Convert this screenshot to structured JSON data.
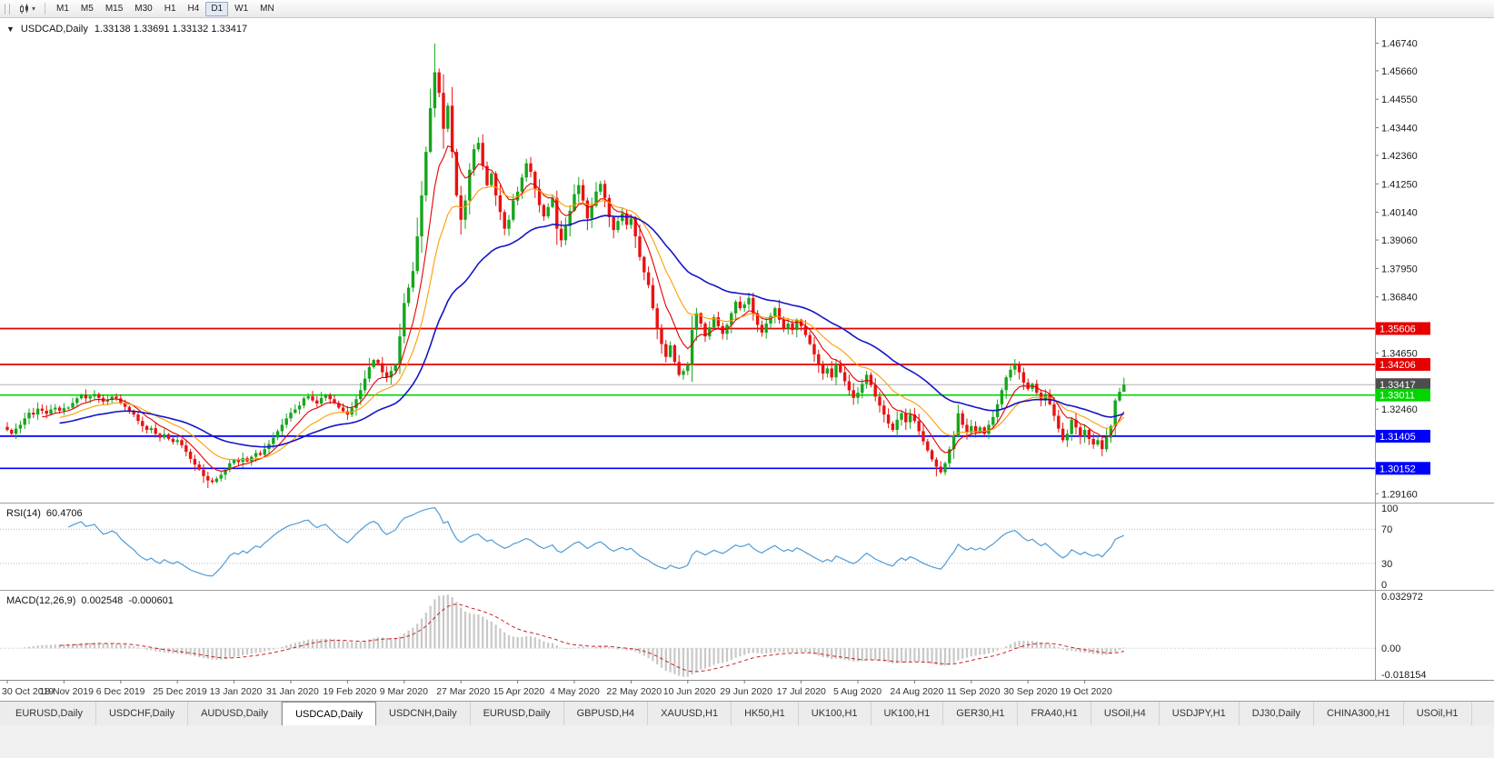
{
  "icons": {
    "collapse": "▼",
    "caret_down": "▾"
  },
  "toolbar": {
    "timeframes": [
      {
        "label": "M1",
        "active": false
      },
      {
        "label": "M5",
        "active": false
      },
      {
        "label": "M15",
        "active": false
      },
      {
        "label": "M30",
        "active": false
      },
      {
        "label": "H1",
        "active": false
      },
      {
        "label": "H4",
        "active": false
      },
      {
        "label": "D1",
        "active": true
      },
      {
        "label": "W1",
        "active": false
      },
      {
        "label": "MN",
        "active": false
      }
    ]
  },
  "chart": {
    "title": "USDCAD,Daily",
    "ohlc_text": "1.33138 1.33691 1.33132 1.33417"
  },
  "chart_data": {
    "type": "candlestick",
    "symbol": "USDCAD",
    "timeframe": "Daily",
    "last_ohlc": {
      "open": 1.33138,
      "high": 1.33691,
      "low": 1.33132,
      "close": 1.33417
    },
    "price_range": [
      1.2885,
      1.4775
    ],
    "y_ticks": [
      1.4674,
      1.4566,
      1.4455,
      1.4344,
      1.4236,
      1.4125,
      1.4014,
      1.3906,
      1.3795,
      1.3684,
      1.3465,
      1.3246,
      1.2916
    ],
    "levels": [
      {
        "price": 1.35606,
        "label": "1.35606",
        "color": "#e60000",
        "current": false
      },
      {
        "price": 1.34206,
        "label": "1.34206",
        "color": "#e60000",
        "current": false
      },
      {
        "price": 1.33417,
        "label": "1.33417",
        "color": "#4d4d4d",
        "current": true
      },
      {
        "price": 1.33011,
        "label": "1.33011",
        "color": "#00d500",
        "current": false
      },
      {
        "price": 1.31405,
        "label": "1.31405",
        "color": "#0000ff",
        "current": false
      },
      {
        "price": 1.30152,
        "label": "1.30152",
        "color": "#0000ff",
        "current": false
      }
    ],
    "x_labels": [
      "30 Oct 2019",
      "18 Nov 2019",
      "6 Dec 2019",
      "25 Dec 2019",
      "13 Jan 2020",
      "31 Jan 2020",
      "19 Feb 2020",
      "9 Mar 2020",
      "27 Mar 2020",
      "15 Apr 2020",
      "4 May 2020",
      "22 May 2020",
      "10 Jun 2020",
      "29 Jun 2020",
      "17 Jul 2020",
      "5 Aug 2020",
      "24 Aug 2020",
      "11 Sep 2020",
      "30 Sep 2020",
      "19 Oct 2020"
    ],
    "x_label_every": 13,
    "closes": [
      1.3165,
      1.315,
      1.317,
      1.3185,
      1.321,
      1.3232,
      1.3225,
      1.3248,
      1.324,
      1.3228,
      1.3245,
      1.3252,
      1.324,
      1.325,
      1.3252,
      1.327,
      1.3288,
      1.3302,
      1.3288,
      1.3296,
      1.3305,
      1.329,
      1.3275,
      1.3282,
      1.3295,
      1.3288,
      1.327,
      1.3255,
      1.324,
      1.3225,
      1.32,
      1.318,
      1.3165,
      1.3172,
      1.315,
      1.3135,
      1.3148,
      1.313,
      1.3118,
      1.3125,
      1.3105,
      1.308,
      1.3052,
      1.303,
      1.301,
      1.2985,
      1.2968,
      1.2962,
      1.2975,
      1.299,
      1.301,
      1.3035,
      1.3048,
      1.304,
      1.3055,
      1.3042,
      1.306,
      1.3075,
      1.3068,
      1.309,
      1.311,
      1.3135,
      1.316,
      1.3185,
      1.321,
      1.3232,
      1.3245,
      1.326,
      1.3288,
      1.3296,
      1.328,
      1.3268,
      1.329,
      1.3302,
      1.3285,
      1.327,
      1.3252,
      1.3238,
      1.3225,
      1.325,
      1.3285,
      1.332,
      1.3365,
      1.341,
      1.3438,
      1.3425,
      1.339,
      1.337,
      1.3395,
      1.342,
      1.353,
      1.366,
      1.372,
      1.3785,
      1.392,
      1.408,
      1.425,
      1.442,
      1.456,
      1.448,
      1.434,
      1.443,
      1.425,
      1.408,
      1.3985,
      1.406,
      1.418,
      1.426,
      1.4285,
      1.4195,
      1.412,
      1.4165,
      1.408,
      1.4015,
      1.395,
      1.3985,
      1.406,
      1.4095,
      1.415,
      1.4205,
      1.4172,
      1.4105,
      1.4042,
      1.3998,
      1.4035,
      1.407,
      1.395,
      1.3905,
      1.396,
      1.402,
      1.4085,
      1.412,
      1.406,
      1.399,
      1.404,
      1.4095,
      1.4125,
      1.407,
      1.3995,
      1.3945,
      1.398,
      1.401,
      1.3965,
      1.399,
      1.392,
      1.384,
      1.378,
      1.373,
      1.364,
      1.356,
      1.35,
      1.345,
      1.3495,
      1.343,
      1.338,
      1.3395,
      1.342,
      1.3555,
      1.362,
      1.358,
      1.353,
      1.3565,
      1.3605,
      1.357,
      1.354,
      1.3575,
      1.362,
      1.3665,
      1.364,
      1.3655,
      1.368,
      1.362,
      1.3575,
      1.3545,
      1.358,
      1.361,
      1.364,
      1.3595,
      1.356,
      1.358,
      1.3555,
      1.3595,
      1.357,
      1.3535,
      1.35,
      1.346,
      1.342,
      1.3385,
      1.3405,
      1.337,
      1.342,
      1.339,
      1.3355,
      1.332,
      1.329,
      1.331,
      1.3345,
      1.338,
      1.334,
      1.3295,
      1.326,
      1.3225,
      1.319,
      1.3165,
      1.3205,
      1.323,
      1.3195,
      1.3225,
      1.32,
      1.316,
      1.312,
      1.3085,
      1.305,
      1.3022,
      1.3,
      1.3035,
      1.309,
      1.314,
      1.323,
      1.3185,
      1.3155,
      1.318,
      1.3155,
      1.3175,
      1.315,
      1.3185,
      1.3215,
      1.3265,
      1.332,
      1.337,
      1.34,
      1.342,
      1.339,
      1.335,
      1.3325,
      1.3345,
      1.331,
      1.328,
      1.3305,
      1.3265,
      1.322,
      1.317,
      1.3125,
      1.315,
      1.3205,
      1.3175,
      1.314,
      1.3165,
      1.313,
      1.3108,
      1.3125,
      1.309,
      1.3135,
      1.318,
      1.328,
      1.33138,
      1.33417
    ],
    "wick_high_overrides": {
      "98": 1.4672
    },
    "wick_low_overrides": {
      "46": 1.2938,
      "213": 1.2984,
      "251": 1.3062
    },
    "candle_up_color": "#17a51e",
    "candle_down_color": "#e81212",
    "ma": [
      {
        "name": "fast",
        "period": 8,
        "color": "#e00000",
        "width": 1.1
      },
      {
        "name": "medium",
        "period": 17,
        "color": "#ff9c00",
        "width": 1.1
      },
      {
        "name": "slow",
        "period": 40,
        "color": "#1515c8",
        "width": 1.6
      }
    ],
    "indicators": {
      "rsi": {
        "label": "RSI(14)",
        "value": "60.4706",
        "period": 14,
        "levels": [
          100,
          70,
          30,
          0
        ],
        "color": "#4f9bd6"
      },
      "macd": {
        "label": "MACD(12,26,9)",
        "value_main": "0.002548",
        "value_signal": "-0.000601",
        "range": [
          -0.018154,
          0.032972
        ],
        "axis_labels": [
          "0.032972",
          "0.00",
          "-0.018154"
        ],
        "hist_color": "#c8c8c8",
        "signal_color": "#d02020"
      }
    }
  },
  "bottom_tabs": [
    {
      "label": "EURUSD,Daily",
      "active": false
    },
    {
      "label": "USDCHF,Daily",
      "active": false
    },
    {
      "label": "AUDUSD,Daily",
      "active": false
    },
    {
      "label": "USDCAD,Daily",
      "active": true
    },
    {
      "label": "USDCNH,Daily",
      "active": false
    },
    {
      "label": "EURUSD,Daily",
      "active": false
    },
    {
      "label": "GBPUSD,H4",
      "active": false
    },
    {
      "label": "XAUUSD,H1",
      "active": false
    },
    {
      "label": "HK50,H1",
      "active": false
    },
    {
      "label": "UK100,H1",
      "active": false
    },
    {
      "label": "UK100,H1",
      "active": false
    },
    {
      "label": "GER30,H1",
      "active": false
    },
    {
      "label": "FRA40,H1",
      "active": false
    },
    {
      "label": "USOil,H4",
      "active": false
    },
    {
      "label": "USDJPY,H1",
      "active": false
    },
    {
      "label": "DJ30,Daily",
      "active": false
    },
    {
      "label": "CHINA300,H1",
      "active": false
    },
    {
      "label": "USOil,H1",
      "active": false
    }
  ]
}
